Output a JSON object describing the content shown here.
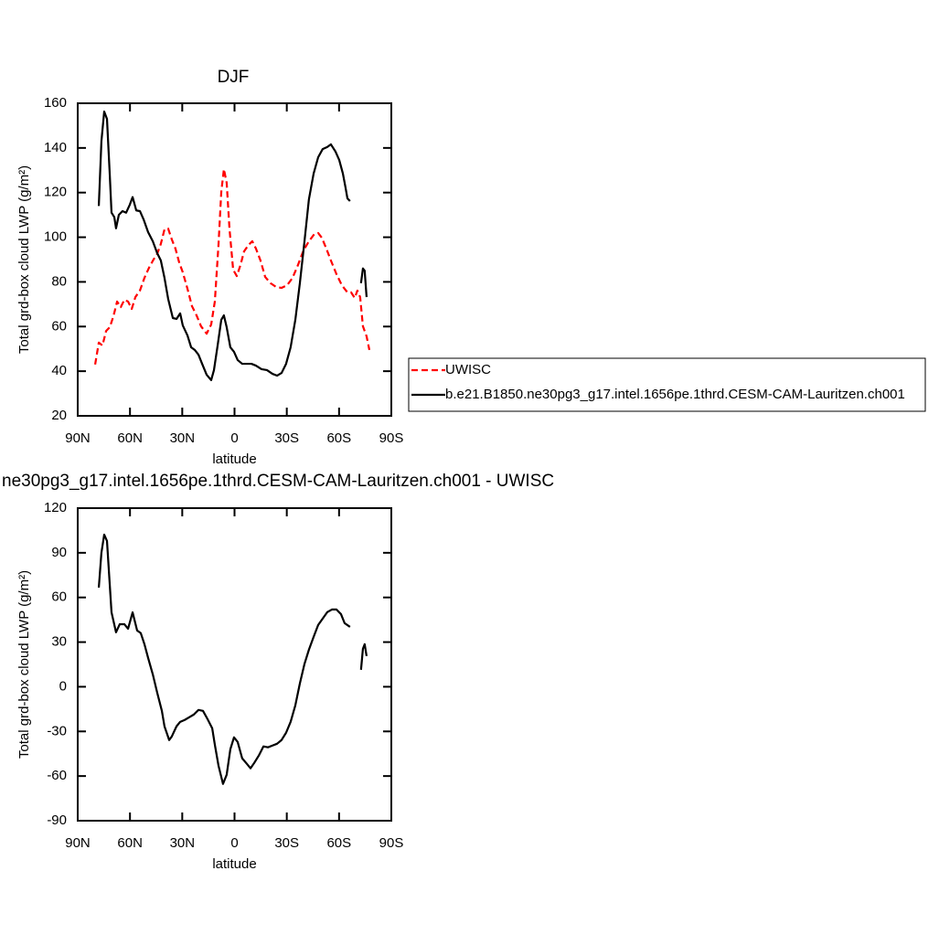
{
  "chart_data": [
    {
      "type": "line",
      "title": "DJF",
      "xlabel": "latitude",
      "ylabel": "Total grd-box cloud LWP (g/m²)",
      "xlim": [
        90,
        -90
      ],
      "xticks": [
        {
          "value": 90,
          "label": "90N"
        },
        {
          "value": 60,
          "label": "60N"
        },
        {
          "value": 30,
          "label": "30N"
        },
        0,
        {
          "value": -30,
          "label": "30S"
        },
        {
          "value": -60,
          "label": "60S"
        },
        {
          "value": -90,
          "label": "90S"
        }
      ],
      "ylim": [
        20,
        160
      ],
      "yticks": [
        20,
        40,
        60,
        80,
        100,
        120,
        140,
        160
      ],
      "legend": "right",
      "series": [
        {
          "name": "UWISC",
          "color": "#ff0000",
          "dash": true,
          "x": [
            80.0,
            77.9,
            75.8,
            73.7,
            71.6,
            69.5,
            67.4,
            65.3,
            63.2,
            61.1,
            59.0,
            56.9,
            54.3,
            51.7,
            49.1,
            46.5,
            44.4,
            42.3,
            40.2,
            38.1,
            36.0,
            33.9,
            31.8,
            29.7,
            27.0,
            24.4,
            21.8,
            19.2,
            16.0,
            13.4,
            11.3,
            9.2,
            7.6,
            6.1,
            4.5,
            2.9,
            0.8,
            -1.3,
            -3.4,
            -5.5,
            -8.1,
            -10.2,
            -12.3,
            -14.9,
            -17.6,
            -20.7,
            -23.9,
            -27.0,
            -30.2,
            -33.3,
            -36.4,
            -39.6,
            -42.7,
            -45.9,
            -48.0,
            -50.1,
            -52.7,
            -55.3,
            -58.5,
            -61.6,
            -64.8,
            -66.9,
            -69.0,
            -70.5,
            -72.1,
            -73.7,
            -75.8,
            -77.4
          ],
          "values": [
            43,
            52.8,
            51.5,
            58,
            59.7,
            64.6,
            71.2,
            68.7,
            72,
            71.2,
            67.9,
            73.2,
            76.1,
            81.8,
            86.3,
            90,
            92.5,
            97,
            103.5,
            103.9,
            99,
            94.9,
            88.8,
            84.3,
            76.9,
            69.1,
            65,
            60.1,
            56.8,
            60.9,
            71.2,
            96.6,
            120.3,
            130.5,
            124.4,
            103.9,
            85.5,
            82.6,
            87.5,
            93.7,
            96.6,
            98.2,
            94.9,
            89.6,
            82.2,
            79.4,
            77.7,
            77.3,
            78.5,
            81.8,
            87.5,
            94.1,
            98.2,
            101.5,
            101.9,
            99.8,
            94.9,
            89.6,
            83.5,
            78.5,
            75.3,
            75.3,
            72.8,
            76.1,
            73.2,
            60.1,
            55.6,
            49.5
          ]
        },
        {
          "name": "b.e21.B1850.ne30pg3_g17.intel.1656pe.1thrd.CESM-CAM-Lauritzen.ch001",
          "color": "#000000",
          "dash": false,
          "x": [
            77.9,
            76.4,
            74.8,
            73.2,
            71.6,
            70.6,
            69.0,
            68.0,
            66.4,
            64.3,
            62.2,
            60.1,
            58.5,
            56.4,
            54.3,
            52.2,
            49.6,
            46.9,
            44.4,
            42.3,
            40.2,
            38.1,
            35.4,
            33.3,
            31.2,
            29.7,
            27.0,
            24.9,
            22.8,
            20.7,
            18.6,
            16.0,
            13.4,
            11.8,
            9.7,
            7.6,
            6.1,
            4.5,
            2.4,
            0.3,
            -1.8,
            -4.4,
            -7.1,
            -9.7,
            -12.3,
            -15.5,
            -18.6,
            -21.8,
            -24.4,
            -27.0,
            -29.6,
            -32.2,
            -34.9,
            -37.5,
            -40.1,
            -42.7,
            -45.4,
            -48.0,
            -50.6,
            -53.2,
            -55.3,
            -58.0,
            -60.1,
            -62.2,
            -63.7,
            -64.8,
            -66.3,
            null,
            -72.6,
            -73.7,
            -74.7,
            -75.8
          ],
          "values": [
            114,
            143,
            156.3,
            153,
            128,
            111,
            109,
            104,
            110,
            111.7,
            111,
            114.6,
            118,
            112,
            111.7,
            108,
            102.3,
            98.2,
            92.9,
            89.6,
            81.8,
            72.4,
            63.8,
            63.4,
            65.9,
            60.5,
            56,
            50.7,
            49.5,
            47.4,
            43.3,
            38.4,
            36,
            40.5,
            51.5,
            63,
            65,
            59.7,
            50.7,
            48.7,
            45,
            43.3,
            43.3,
            43.3,
            42.5,
            40.9,
            40.5,
            38.8,
            38,
            39.2,
            43.3,
            50.7,
            63,
            79.4,
            97.8,
            117,
            128.5,
            135.8,
            139.5,
            140.4,
            141.6,
            138.3,
            134.6,
            128.5,
            122.3,
            117.4,
            116.2,
            null,
            79.4,
            86,
            85,
            73.2
          ]
        }
      ]
    },
    {
      "type": "line",
      "title": "ne30pg3_g17.intel.1656pe.1thrd.CESM-CAM-Lauritzen.ch001 - UWISC",
      "xlabel": "latitude",
      "ylabel": "Total grd-box cloud LWP (g/m²)",
      "xlim": [
        90,
        -90
      ],
      "xticks": [
        {
          "value": 90,
          "label": "90N"
        },
        {
          "value": 60,
          "label": "60N"
        },
        {
          "value": 30,
          "label": "30N"
        },
        0,
        {
          "value": -30,
          "label": "30S"
        },
        {
          "value": -60,
          "label": "60S"
        },
        {
          "value": -90,
          "label": "90S"
        }
      ],
      "ylim": [
        -90,
        120
      ],
      "yticks": [
        -90,
        -60,
        -30,
        0,
        30,
        60,
        90,
        120
      ],
      "series": [
        {
          "color": "#000000",
          "dash": false,
          "x": [
            77.9,
            76.4,
            74.8,
            73.2,
            71.6,
            70.6,
            68.0,
            65.9,
            63.2,
            61.1,
            58.5,
            55.9,
            53.8,
            51.7,
            49.6,
            46.9,
            44.4,
            41.7,
            40.2,
            37.5,
            36.0,
            33.3,
            31.2,
            28.6,
            26.0,
            23.4,
            20.7,
            18.1,
            15.5,
            12.8,
            11.3,
            9.2,
            6.6,
            4.5,
            2.4,
            0.3,
            -1.8,
            -4.4,
            -7.1,
            -9.2,
            -11.3,
            -13.9,
            -16.6,
            -19.2,
            -21.8,
            -24.4,
            -27.0,
            -29.6,
            -32.2,
            -34.9,
            -37.5,
            -40.1,
            -42.7,
            -45.4,
            -48.0,
            -50.6,
            -53.2,
            -55.9,
            -58.5,
            -61.1,
            -63.2,
            -66.3,
            null,
            -72.6,
            -73.7,
            -74.7,
            -75.8
          ],
          "values": [
            66.6,
            90,
            102.2,
            97.9,
            68.5,
            50,
            36.6,
            42,
            42,
            39,
            50,
            37.8,
            36,
            28.6,
            19.4,
            8.3,
            -3.9,
            -16.2,
            -26.6,
            -35.8,
            -33.4,
            -26.6,
            -23.6,
            -22.3,
            -20.5,
            -18.7,
            -15.6,
            -16.2,
            -21.7,
            -27.9,
            -38.9,
            -53,
            -65.3,
            -59.1,
            -42,
            -34,
            -37.1,
            -48.1,
            -51.8,
            -54.8,
            -51.2,
            -46.3,
            -40.1,
            -40.7,
            -39.5,
            -38.3,
            -35.8,
            -30.9,
            -23.6,
            -12.5,
            2.2,
            15.1,
            24.9,
            33.5,
            41.5,
            45.8,
            50.1,
            51.9,
            51.9,
            48.8,
            42.7,
            40.2,
            null,
            11.4,
            25.5,
            28.6,
            20.6
          ]
        }
      ]
    }
  ]
}
